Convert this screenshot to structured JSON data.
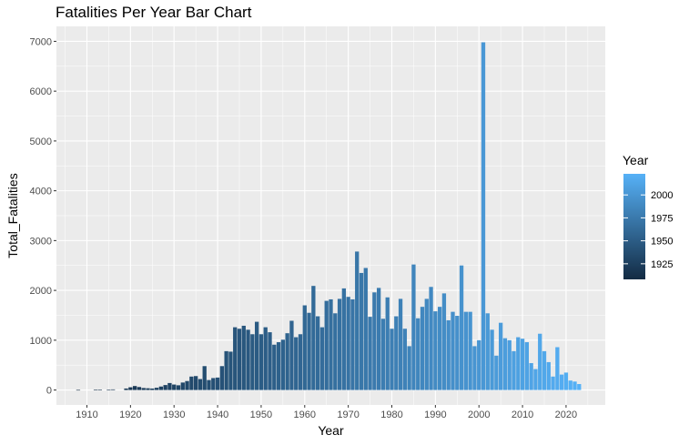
{
  "chart_data": {
    "type": "bar",
    "title": "Fatalities Per Year Bar Chart",
    "xlabel": "Year",
    "ylabel": "Total_Fatalities",
    "xlim": [
      1903,
      2029
    ],
    "ylim": [
      -300,
      7300
    ],
    "x_ticks": [
      1910,
      1920,
      1930,
      1940,
      1950,
      1960,
      1970,
      1980,
      1990,
      2000,
      2010,
      2020
    ],
    "y_ticks": [
      0,
      1000,
      2000,
      3000,
      4000,
      5000,
      6000,
      7000
    ],
    "grid": true,
    "legend": {
      "title": "Year",
      "position": "right",
      "labels": [
        1925,
        1950,
        1975,
        2000
      ],
      "color_low": "#132B43",
      "color_high": "#56B1F7",
      "range": [
        1908,
        2023
      ]
    },
    "colors": {
      "panel": "#ebebeb",
      "grid": "#ffffff"
    },
    "x": [
      1908,
      1912,
      1913,
      1915,
      1916,
      1919,
      1920,
      1921,
      1922,
      1923,
      1924,
      1925,
      1926,
      1927,
      1928,
      1929,
      1930,
      1931,
      1932,
      1933,
      1934,
      1935,
      1936,
      1937,
      1938,
      1939,
      1940,
      1941,
      1942,
      1943,
      1944,
      1945,
      1946,
      1947,
      1948,
      1949,
      1950,
      1951,
      1952,
      1953,
      1954,
      1955,
      1956,
      1957,
      1958,
      1959,
      1960,
      1961,
      1962,
      1963,
      1964,
      1965,
      1966,
      1967,
      1968,
      1969,
      1970,
      1971,
      1972,
      1973,
      1974,
      1975,
      1976,
      1977,
      1978,
      1979,
      1980,
      1981,
      1982,
      1983,
      1984,
      1985,
      1986,
      1987,
      1988,
      1989,
      1990,
      1991,
      1992,
      1993,
      1994,
      1995,
      1996,
      1997,
      1998,
      1999,
      2000,
      2001,
      2002,
      2003,
      2004,
      2005,
      2006,
      2007,
      2008,
      2009,
      2010,
      2011,
      2012,
      2013,
      2014,
      2015,
      2016,
      2017,
      2018,
      2019,
      2020,
      2021,
      2022,
      2023
    ],
    "values": [
      2,
      5,
      8,
      3,
      12,
      30,
      55,
      80,
      60,
      40,
      35,
      30,
      45,
      70,
      100,
      140,
      110,
      95,
      150,
      180,
      270,
      280,
      220,
      480,
      200,
      240,
      250,
      480,
      780,
      770,
      1260,
      1230,
      1290,
      1210,
      1120,
      1370,
      1120,
      1260,
      1160,
      910,
      960,
      1010,
      1140,
      1390,
      1060,
      1120,
      1700,
      1550,
      2090,
      1480,
      1260,
      1790,
      1820,
      1540,
      1830,
      2040,
      1870,
      1820,
      2780,
      2350,
      2450,
      1470,
      1960,
      2050,
      1430,
      1860,
      1230,
      1480,
      1830,
      1230,
      880,
      2520,
      1440,
      1670,
      1830,
      2070,
      1580,
      1670,
      1940,
      1400,
      1570,
      1490,
      2500,
      1570,
      1570,
      880,
      1000,
      6980,
      1540,
      1210,
      690,
      1350,
      1040,
      1000,
      780,
      1060,
      1030,
      960,
      540,
      420,
      1130,
      780,
      560,
      270,
      860,
      310,
      350,
      190,
      170,
      120
    ]
  }
}
